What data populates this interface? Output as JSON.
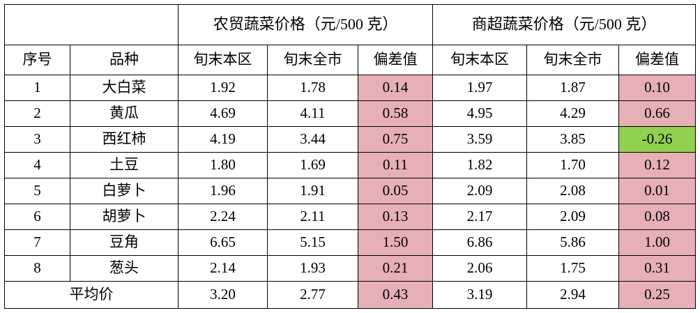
{
  "colors": {
    "deviation_fill": "#E6B0B6",
    "negative_fill": "#92D050",
    "border": "#000000",
    "text": "#000000"
  },
  "chart_data": {
    "type": "table",
    "title_row": {
      "corner": "",
      "farm_market": "农贸蔬菜价格（元/500 克）",
      "supermarket": "商超蔬菜价格（元/500 克）"
    },
    "columns": [
      "序号",
      "品种",
      "旬末本区",
      "旬末全市",
      "偏差值",
      "旬末本区",
      "旬末全市",
      "偏差值"
    ],
    "rows": [
      [
        "1",
        "大白菜",
        "1.92",
        "1.78",
        "0.14",
        "1.97",
        "1.87",
        "0.10"
      ],
      [
        "2",
        "黄瓜",
        "4.69",
        "4.11",
        "0.58",
        "4.95",
        "4.29",
        "0.66"
      ],
      [
        "3",
        "西红柿",
        "4.19",
        "3.44",
        "0.75",
        "3.59",
        "3.85",
        "-0.26"
      ],
      [
        "4",
        "土豆",
        "1.80",
        "1.69",
        "0.11",
        "1.82",
        "1.70",
        "0.12"
      ],
      [
        "5",
        "白萝卜",
        "1.96",
        "1.91",
        "0.05",
        "2.09",
        "2.08",
        "0.01"
      ],
      [
        "6",
        "胡萝卜",
        "2.24",
        "2.11",
        "0.13",
        "2.17",
        "2.09",
        "0.08"
      ],
      [
        "7",
        "豆角",
        "6.65",
        "5.15",
        "1.50",
        "6.86",
        "5.86",
        "1.00"
      ],
      [
        "8",
        "葱头",
        "2.14",
        "1.93",
        "0.21",
        "2.06",
        "1.75",
        "0.31"
      ]
    ],
    "footer": [
      "平均价",
      "3.20",
      "2.77",
      "0.43",
      "3.19",
      "2.94",
      "0.25"
    ],
    "notes": "偏差值 columns have pink fill; negative deviation cell is green; footer row is bold averages"
  }
}
